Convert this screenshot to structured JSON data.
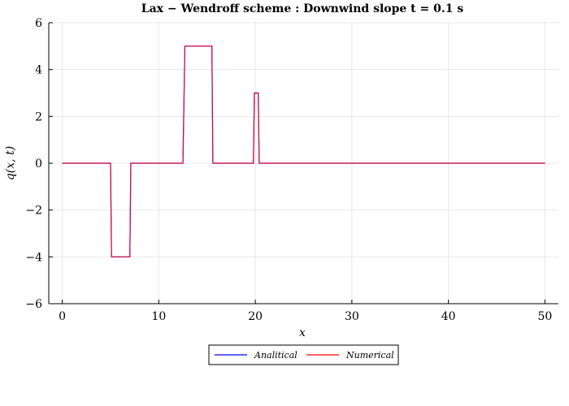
{
  "chart_data": {
    "type": "line",
    "title": "Lax − Wendroff scheme : Downwind slope   t = 0.1 s",
    "xlabel": "x",
    "ylabel": "q(x, t)",
    "xlim": [
      -1.4,
      51.4
    ],
    "ylim": [
      -6,
      6
    ],
    "xticks": [
      0,
      10,
      20,
      30,
      40,
      50
    ],
    "yticks": [
      -6,
      -4,
      -2,
      0,
      2,
      4,
      6
    ],
    "xtick_labels": [
      "0",
      "10",
      "20",
      "30",
      "40",
      "50"
    ],
    "ytick_labels": [
      "−6",
      "−4",
      "−2",
      "0",
      "2",
      "4",
      "6"
    ],
    "grid": true,
    "legend_position": "bottom-center",
    "series": [
      {
        "name": "Analitical",
        "color": "#0000ff",
        "x": [
          0,
          5.0,
          5.1,
          7.0,
          7.1,
          12.5,
          12.7,
          15.5,
          15.6,
          19.8,
          19.9,
          20.3,
          20.4,
          50
        ],
        "y": [
          0,
          0,
          -4,
          -4,
          0,
          0,
          5,
          5,
          0,
          0,
          3,
          3,
          0,
          0
        ]
      },
      {
        "name": "Numerical",
        "color": "#ff0000",
        "x": [
          0,
          5.0,
          5.1,
          7.0,
          7.1,
          12.5,
          12.7,
          15.5,
          15.6,
          19.8,
          19.9,
          20.3,
          20.4,
          50
        ],
        "y": [
          0,
          0,
          -4,
          -4,
          0,
          0,
          5,
          5,
          0,
          0,
          3,
          3,
          0,
          0
        ]
      }
    ]
  }
}
